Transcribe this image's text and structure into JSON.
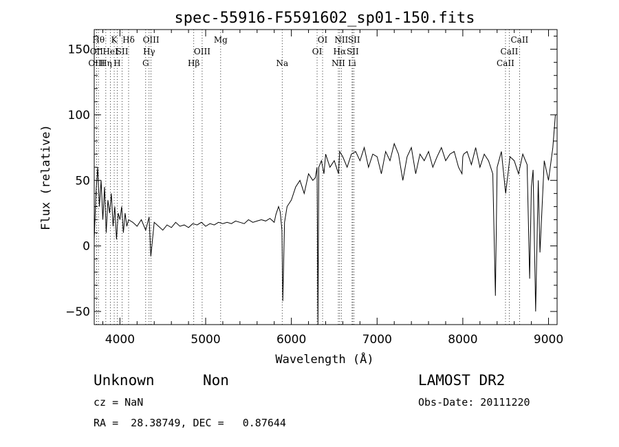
{
  "chart_data": {
    "type": "line",
    "title": "spec-55916-F5591602_sp01-150.fits",
    "xlabel": "Wavelength (Å)",
    "ylabel": "Flux (relative)",
    "xlim": [
      3700,
      9100
    ],
    "ylim": [
      -60,
      165
    ],
    "x_ticks": [
      {
        "value": 4000,
        "label": "4000"
      },
      {
        "value": 5000,
        "label": "5000"
      },
      {
        "value": 6000,
        "label": "6000"
      },
      {
        "value": 7000,
        "label": "7000"
      },
      {
        "value": 8000,
        "label": "8000"
      },
      {
        "value": 9000,
        "label": "9000"
      }
    ],
    "y_ticks": [
      {
        "value": -50,
        "label": "−50"
      },
      {
        "value": 0,
        "label": "0"
      },
      {
        "value": 50,
        "label": "50"
      },
      {
        "value": 100,
        "label": "100"
      },
      {
        "value": 150,
        "label": "150"
      }
    ],
    "series": [
      {
        "x": [
          3700,
          3720,
          3740,
          3760,
          3780,
          3800,
          3820,
          3840,
          3860,
          3880,
          3900,
          3920,
          3940,
          3960,
          3980,
          4000,
          4020,
          4040,
          4060,
          4080,
          4100,
          4150,
          4200,
          4250,
          4300,
          4340,
          4360,
          4400,
          4450,
          4500,
          4550,
          4600,
          4650,
          4700,
          4750,
          4800,
          4850,
          4900,
          4950,
          5000,
          5050,
          5100,
          5150,
          5200,
          5250,
          5300,
          5350,
          5400,
          5450,
          5500,
          5550,
          5600,
          5650,
          5700,
          5750,
          5800,
          5820,
          5850,
          5870,
          5890,
          5900,
          5920,
          5950,
          6000,
          6050,
          6100,
          6150,
          6200,
          6250,
          6280,
          6300,
          6310,
          6320,
          6350,
          6380,
          6400,
          6450,
          6500,
          6550,
          6563,
          6600,
          6650,
          6700,
          6750,
          6800,
          6850,
          6900,
          6950,
          7000,
          7050,
          7100,
          7150,
          7200,
          7250,
          7300,
          7350,
          7400,
          7450,
          7500,
          7550,
          7600,
          7650,
          7700,
          7750,
          7800,
          7850,
          7900,
          7950,
          7990,
          8000,
          8010,
          8050,
          8100,
          8150,
          8200,
          8250,
          8300,
          8350,
          8380,
          8400,
          8450,
          8500,
          8550,
          8600,
          8650,
          8700,
          8750,
          8780,
          8800,
          8820,
          8850,
          8880,
          8900,
          8950,
          9000,
          9050,
          9080
        ],
        "y": [
          5,
          40,
          60,
          30,
          50,
          20,
          45,
          10,
          35,
          25,
          40,
          15,
          30,
          5,
          25,
          20,
          30,
          10,
          25,
          15,
          20,
          18,
          15,
          20,
          12,
          22,
          -8,
          18,
          15,
          12,
          16,
          14,
          18,
          15,
          16,
          14,
          17,
          16,
          18,
          15,
          17,
          16,
          18,
          17,
          18,
          17,
          19,
          18,
          17,
          20,
          18,
          19,
          20,
          19,
          21,
          18,
          24,
          30,
          26,
          12,
          -42,
          18,
          30,
          35,
          45,
          50,
          40,
          55,
          50,
          52,
          60,
          -60,
          60,
          65,
          55,
          70,
          60,
          65,
          55,
          72,
          68,
          60,
          70,
          72,
          65,
          75,
          60,
          70,
          68,
          55,
          72,
          65,
          78,
          70,
          50,
          68,
          75,
          55,
          70,
          65,
          72,
          60,
          68,
          75,
          65,
          70,
          72,
          60,
          55,
          68,
          70,
          72,
          62,
          75,
          60,
          70,
          65,
          55,
          -38,
          60,
          72,
          40,
          68,
          65,
          55,
          70,
          62,
          -25,
          45,
          58,
          -50,
          50,
          -5,
          65,
          50,
          75,
          100
        ]
      }
    ]
  },
  "spectral_lines": [
    {
      "wavelength": 3750,
      "label": "Hθ",
      "row": 0
    },
    {
      "wavelength": 3727,
      "label": "OII",
      "row": 1
    },
    {
      "wavelength": 3727,
      "label": "OIII",
      "row": 2
    },
    {
      "wavelength": 3835,
      "label": "Hη",
      "row": 2
    },
    {
      "wavelength": 3889,
      "label": "HeI",
      "row": 1
    },
    {
      "wavelength": 3933,
      "label": "K",
      "row": 0
    },
    {
      "wavelength": 3968,
      "label": "H",
      "row": 2
    },
    {
      "wavelength": 4026,
      "label": "SII",
      "row": 1
    },
    {
      "wavelength": 4101,
      "label": "Hδ",
      "row": 0
    },
    {
      "wavelength": 4300,
      "label": "G",
      "row": 2
    },
    {
      "wavelength": 4340,
      "label": "Hγ",
      "row": 1
    },
    {
      "wavelength": 4363,
      "label": "OIII",
      "row": 0
    },
    {
      "wavelength": 4861,
      "label": "Hβ",
      "row": 2
    },
    {
      "wavelength": 4959,
      "label": "OIII",
      "row": 1
    },
    {
      "wavelength": 5175,
      "label": "Mg",
      "row": 0
    },
    {
      "wavelength": 5893,
      "label": "Na",
      "row": 2
    },
    {
      "wavelength": 6300,
      "label": "OI",
      "row": 1
    },
    {
      "wavelength": 6364,
      "label": "OI",
      "row": 0
    },
    {
      "wavelength": 6548,
      "label": "NII",
      "row": 2
    },
    {
      "wavelength": 6563,
      "label": "Hα",
      "row": 1
    },
    {
      "wavelength": 6583,
      "label": "NII",
      "row": 0
    },
    {
      "wavelength": 6708,
      "label": "Li",
      "row": 2
    },
    {
      "wavelength": 6716,
      "label": "SII",
      "row": 1
    },
    {
      "wavelength": 6731,
      "label": "SII",
      "row": 0
    },
    {
      "wavelength": 8498,
      "label": "CaII",
      "row": 2
    },
    {
      "wavelength": 8542,
      "label": "CaII",
      "row": 1
    },
    {
      "wavelength": 8662,
      "label": "CaII",
      "row": 0
    }
  ],
  "info": {
    "class_label": "Unknown",
    "subclass_label": "Non",
    "survey_label": "LAMOST DR2",
    "cz_text": "cz = NaN",
    "obs_date_text": "Obs-Date: 20111220",
    "coords_text": "RA =  28.38749, DEC =   0.87644"
  }
}
